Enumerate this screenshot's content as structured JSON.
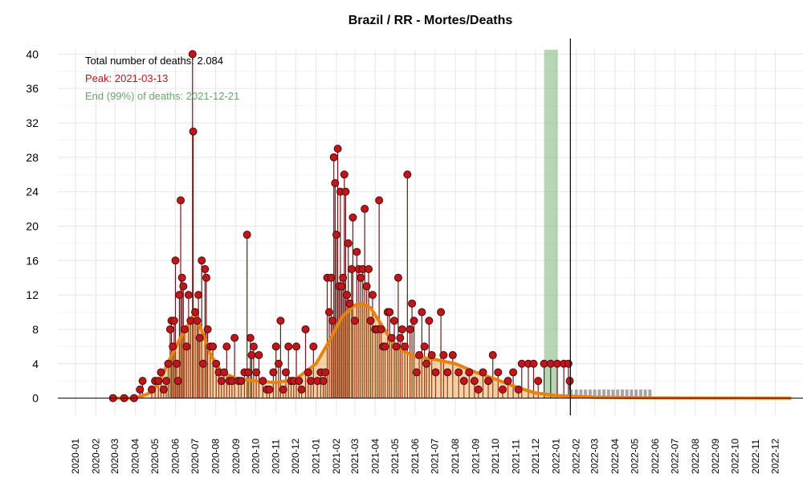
{
  "chart_data": {
    "type": "line",
    "title": "Brazil / RR - Mortes/Deaths",
    "xlabel": "",
    "ylabel": "",
    "x_range": [
      "2019-12-05",
      "2023-01-12"
    ],
    "ylim": [
      -2,
      40.5
    ],
    "yticks": [
      0,
      4,
      8,
      12,
      16,
      20,
      24,
      28,
      32,
      36,
      40
    ],
    "xtick_labels": [
      "2020-01",
      "2020-02",
      "2020-03",
      "2020-04",
      "2020-05",
      "2020-06",
      "2020-07",
      "2020-08",
      "2020-09",
      "2020-10",
      "2020-11",
      "2020-12",
      "2021-01",
      "2021-02",
      "2021-03",
      "2021-04",
      "2021-05",
      "2021-06",
      "2021-07",
      "2021-08",
      "2021-09",
      "2021-10",
      "2021-11",
      "2021-12",
      "2022-01",
      "2022-02",
      "2022-03",
      "2022-04",
      "2022-05",
      "2022-06",
      "2022-07",
      "2022-08",
      "2022-09",
      "2022-10",
      "2022-11",
      "2022-12"
    ],
    "grid": true,
    "annotations": {
      "total": "Total number of deaths: 2.084",
      "peak": "Peak: 2021-03-13",
      "end": "End (99%) of deaths: 2021-12-21"
    },
    "colors": {
      "daily": "#c0151b",
      "stem": "#6b1a1a",
      "smooth": "#e8820c",
      "forecast": "#a6a6a6",
      "end_band": "#8fc08f",
      "annotation_total": "#000000",
      "annotation_peak": "#c0151b",
      "annotation_end": "#6aa86a"
    },
    "current_date_line": "2022-01-23",
    "end_band": [
      "2021-12-14",
      "2022-01-04"
    ],
    "daily_deaths": [
      [
        "2020-02-27",
        0
      ],
      [
        "2020-03-15",
        0
      ],
      [
        "2020-03-30",
        0
      ],
      [
        "2020-04-08",
        1
      ],
      [
        "2020-04-12",
        2
      ],
      [
        "2020-04-26",
        1
      ],
      [
        "2020-05-01",
        2
      ],
      [
        "2020-05-06",
        2
      ],
      [
        "2020-05-10",
        3
      ],
      [
        "2020-05-14",
        1
      ],
      [
        "2020-05-18",
        2
      ],
      [
        "2020-05-21",
        4
      ],
      [
        "2020-05-24",
        8
      ],
      [
        "2020-05-26",
        9
      ],
      [
        "2020-05-28",
        6
      ],
      [
        "2020-05-30",
        9
      ],
      [
        "2020-06-01",
        16
      ],
      [
        "2020-06-03",
        4
      ],
      [
        "2020-06-05",
        2
      ],
      [
        "2020-06-07",
        12
      ],
      [
        "2020-06-09",
        23
      ],
      [
        "2020-06-11",
        14
      ],
      [
        "2020-06-13",
        13
      ],
      [
        "2020-06-15",
        8
      ],
      [
        "2020-06-18",
        6
      ],
      [
        "2020-06-21",
        12
      ],
      [
        "2020-06-24",
        9
      ],
      [
        "2020-06-27",
        40
      ],
      [
        "2020-06-28",
        31
      ],
      [
        "2020-07-01",
        10
      ],
      [
        "2020-07-04",
        9
      ],
      [
        "2020-07-06",
        12
      ],
      [
        "2020-07-08",
        7
      ],
      [
        "2020-07-11",
        16
      ],
      [
        "2020-07-13",
        4
      ],
      [
        "2020-07-16",
        15
      ],
      [
        "2020-07-18",
        14
      ],
      [
        "2020-07-20",
        8
      ],
      [
        "2020-07-24",
        6
      ],
      [
        "2020-07-28",
        6
      ],
      [
        "2020-08-02",
        4
      ],
      [
        "2020-08-06",
        3
      ],
      [
        "2020-08-10",
        2
      ],
      [
        "2020-08-14",
        3
      ],
      [
        "2020-08-18",
        6
      ],
      [
        "2020-08-22",
        2
      ],
      [
        "2020-08-26",
        2
      ],
      [
        "2020-08-30",
        7
      ],
      [
        "2020-09-05",
        2
      ],
      [
        "2020-09-09",
        2
      ],
      [
        "2020-09-14",
        3
      ],
      [
        "2020-09-18",
        19
      ],
      [
        "2020-09-20",
        3
      ],
      [
        "2020-09-23",
        7
      ],
      [
        "2020-09-25",
        5
      ],
      [
        "2020-09-28",
        6
      ],
      [
        "2020-10-02",
        3
      ],
      [
        "2020-10-06",
        5
      ],
      [
        "2020-10-12",
        2
      ],
      [
        "2020-10-18",
        1
      ],
      [
        "2020-10-22",
        1
      ],
      [
        "2020-10-28",
        3
      ],
      [
        "2020-11-01",
        6
      ],
      [
        "2020-11-05",
        4
      ],
      [
        "2020-11-08",
        9
      ],
      [
        "2020-11-12",
        1
      ],
      [
        "2020-11-16",
        3
      ],
      [
        "2020-11-20",
        6
      ],
      [
        "2020-11-24",
        2
      ],
      [
        "2020-11-28",
        2
      ],
      [
        "2020-12-02",
        6
      ],
      [
        "2020-12-06",
        2
      ],
      [
        "2020-12-10",
        1
      ],
      [
        "2020-12-16",
        8
      ],
      [
        "2020-12-20",
        3
      ],
      [
        "2020-12-24",
        2
      ],
      [
        "2020-12-28",
        6
      ],
      [
        "2021-01-03",
        2
      ],
      [
        "2021-01-08",
        3
      ],
      [
        "2021-01-12",
        2
      ],
      [
        "2021-01-15",
        3
      ],
      [
        "2021-01-18",
        14
      ],
      [
        "2021-01-21",
        10
      ],
      [
        "2021-01-24",
        14
      ],
      [
        "2021-01-26",
        9
      ],
      [
        "2021-01-28",
        28
      ],
      [
        "2021-01-30",
        25
      ],
      [
        "2021-02-01",
        19
      ],
      [
        "2021-02-03",
        29
      ],
      [
        "2021-02-05",
        13
      ],
      [
        "2021-02-07",
        24
      ],
      [
        "2021-02-09",
        13
      ],
      [
        "2021-02-11",
        14
      ],
      [
        "2021-02-13",
        26
      ],
      [
        "2021-02-15",
        24
      ],
      [
        "2021-02-17",
        12
      ],
      [
        "2021-02-19",
        18
      ],
      [
        "2021-02-21",
        11
      ],
      [
        "2021-02-24",
        15
      ],
      [
        "2021-02-26",
        21
      ],
      [
        "2021-03-01",
        9
      ],
      [
        "2021-03-04",
        17
      ],
      [
        "2021-03-07",
        15
      ],
      [
        "2021-03-10",
        14
      ],
      [
        "2021-03-13",
        15
      ],
      [
        "2021-03-16",
        22
      ],
      [
        "2021-03-19",
        13
      ],
      [
        "2021-03-22",
        15
      ],
      [
        "2021-03-25",
        9
      ],
      [
        "2021-03-28",
        12
      ],
      [
        "2021-04-01",
        8
      ],
      [
        "2021-04-04",
        8
      ],
      [
        "2021-04-07",
        23
      ],
      [
        "2021-04-10",
        8
      ],
      [
        "2021-04-13",
        6
      ],
      [
        "2021-04-16",
        6
      ],
      [
        "2021-04-20",
        10
      ],
      [
        "2021-04-23",
        10
      ],
      [
        "2021-04-26",
        7
      ],
      [
        "2021-04-30",
        9
      ],
      [
        "2021-05-03",
        6
      ],
      [
        "2021-05-06",
        14
      ],
      [
        "2021-05-09",
        7
      ],
      [
        "2021-05-12",
        8
      ],
      [
        "2021-05-16",
        6
      ],
      [
        "2021-05-20",
        26
      ],
      [
        "2021-05-24",
        8
      ],
      [
        "2021-05-27",
        11
      ],
      [
        "2021-05-30",
        9
      ],
      [
        "2021-06-03",
        3
      ],
      [
        "2021-06-07",
        5
      ],
      [
        "2021-06-11",
        10
      ],
      [
        "2021-06-15",
        6
      ],
      [
        "2021-06-18",
        4
      ],
      [
        "2021-06-22",
        9
      ],
      [
        "2021-06-26",
        5
      ],
      [
        "2021-07-02",
        3
      ],
      [
        "2021-07-10",
        10
      ],
      [
        "2021-07-14",
        5
      ],
      [
        "2021-07-20",
        3
      ],
      [
        "2021-07-28",
        5
      ],
      [
        "2021-08-06",
        3
      ],
      [
        "2021-08-14",
        2
      ],
      [
        "2021-08-22",
        3
      ],
      [
        "2021-08-30",
        2
      ],
      [
        "2021-09-05",
        1
      ],
      [
        "2021-09-12",
        3
      ],
      [
        "2021-09-20",
        2
      ],
      [
        "2021-09-27",
        5
      ],
      [
        "2021-10-05",
        3
      ],
      [
        "2021-10-12",
        1
      ],
      [
        "2021-10-20",
        2
      ],
      [
        "2021-10-28",
        3
      ],
      [
        "2021-11-05",
        1
      ],
      [
        "2021-11-10",
        4
      ],
      [
        "2021-11-20",
        4
      ],
      [
        "2021-11-28",
        4
      ],
      [
        "2021-12-05",
        2
      ],
      [
        "2021-12-14",
        4
      ],
      [
        "2021-12-24",
        4
      ],
      [
        "2022-01-03",
        4
      ],
      [
        "2022-01-13",
        4
      ],
      [
        "2022-01-20",
        4
      ],
      [
        "2022-01-22",
        2
      ]
    ],
    "smoothed": [
      [
        "2020-02-27",
        0
      ],
      [
        "2020-04-01",
        0
      ],
      [
        "2020-04-20",
        0.5
      ],
      [
        "2020-05-05",
        1.5
      ],
      [
        "2020-05-20",
        4
      ],
      [
        "2020-06-05",
        6.5
      ],
      [
        "2020-06-20",
        8.5
      ],
      [
        "2020-07-01",
        10
      ],
      [
        "2020-07-10",
        8
      ],
      [
        "2020-07-25",
        5
      ],
      [
        "2020-08-10",
        3
      ],
      [
        "2020-09-01",
        2.3
      ],
      [
        "2020-10-01",
        2
      ],
      [
        "2020-11-01",
        1.8
      ],
      [
        "2020-12-01",
        2.2
      ],
      [
        "2021-01-01",
        4
      ],
      [
        "2021-01-20",
        6.5
      ],
      [
        "2021-02-10",
        9.5
      ],
      [
        "2021-03-01",
        10.8
      ],
      [
        "2021-03-13",
        11
      ],
      [
        "2021-03-25",
        10.5
      ],
      [
        "2021-04-15",
        8
      ],
      [
        "2021-05-01",
        6
      ],
      [
        "2021-06-01",
        4.8
      ],
      [
        "2021-07-01",
        4.5
      ],
      [
        "2021-08-01",
        4
      ],
      [
        "2021-09-01",
        3
      ],
      [
        "2021-10-01",
        2.2
      ],
      [
        "2021-11-01",
        1.3
      ],
      [
        "2021-12-01",
        0.6
      ],
      [
        "2022-01-01",
        0.3
      ],
      [
        "2022-03-01",
        0.1
      ],
      [
        "2022-06-01",
        0.02
      ],
      [
        "2022-12-25",
        0
      ]
    ],
    "forecast": [
      [
        "2022-01-24",
        1
      ],
      [
        "2022-02-01",
        1
      ],
      [
        "2022-02-08",
        1
      ],
      [
        "2022-02-15",
        1
      ],
      [
        "2022-02-22",
        1
      ],
      [
        "2022-03-01",
        1
      ],
      [
        "2022-03-08",
        1
      ],
      [
        "2022-03-15",
        1
      ],
      [
        "2022-03-22",
        1
      ],
      [
        "2022-03-29",
        1
      ],
      [
        "2022-04-05",
        1
      ],
      [
        "2022-04-12",
        1
      ],
      [
        "2022-04-19",
        1
      ],
      [
        "2022-04-26",
        1
      ],
      [
        "2022-05-03",
        1
      ],
      [
        "2022-05-10",
        1
      ],
      [
        "2022-05-17",
        1
      ],
      [
        "2022-05-24",
        1
      ]
    ]
  }
}
